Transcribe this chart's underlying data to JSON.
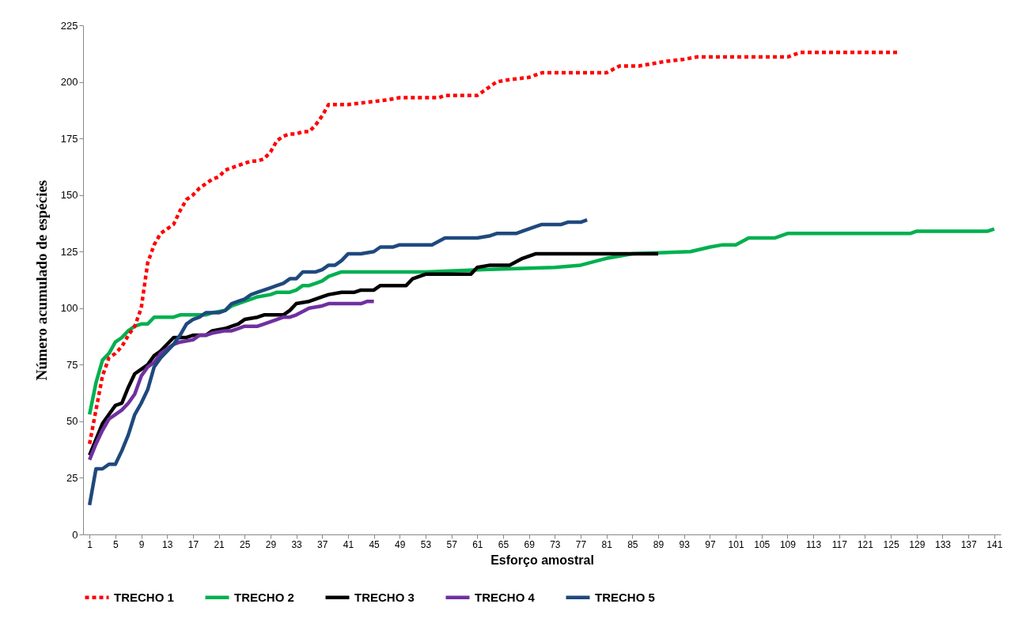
{
  "chart_data": {
    "type": "line",
    "xlabel": "Esforço amostral",
    "ylabel": "Número acumulado de espécies",
    "xlim": [
      0,
      142
    ],
    "ylim": [
      0,
      225
    ],
    "xticks": [
      1,
      5,
      9,
      13,
      17,
      21,
      25,
      29,
      33,
      37,
      41,
      45,
      49,
      53,
      57,
      61,
      65,
      69,
      73,
      77,
      81,
      85,
      89,
      93,
      97,
      101,
      105,
      109,
      113,
      117,
      121,
      125,
      129,
      133,
      137,
      141
    ],
    "yticks": [
      0,
      25,
      50,
      75,
      100,
      125,
      150,
      175,
      200,
      225
    ],
    "legend": "bottom",
    "series": [
      {
        "name": "TRECHO 1",
        "color": "#ff0000",
        "line_style": "dotted",
        "x": [
          1,
          2,
          3,
          4,
          5,
          6,
          7,
          8,
          9,
          10,
          11,
          12,
          13,
          14,
          15,
          16,
          17,
          18,
          19,
          20,
          21,
          22,
          23,
          24,
          25,
          26,
          27,
          28,
          29,
          30,
          31,
          32,
          33,
          34,
          35,
          36,
          37,
          38,
          41,
          44,
          47,
          49,
          55,
          56,
          61,
          62,
          64,
          66,
          69,
          71,
          79,
          81,
          83,
          86,
          88,
          90,
          93,
          95,
          109,
          111,
          126
        ],
        "values": [
          40,
          55,
          70,
          78,
          80,
          83,
          88,
          92,
          100,
          120,
          128,
          133,
          135,
          137,
          143,
          148,
          150,
          153,
          155,
          157,
          158,
          161,
          162,
          163,
          164,
          165,
          165,
          166,
          169,
          174,
          176,
          177,
          177,
          178,
          178,
          181,
          185,
          190,
          190,
          191,
          192,
          193,
          193,
          194,
          194,
          196,
          200,
          201,
          202,
          204,
          204,
          204,
          207,
          207,
          208,
          209,
          210,
          211,
          211,
          213,
          213
        ]
      },
      {
        "name": "TRECHO 2",
        "color": "#00b050",
        "line_style": "solid",
        "x": [
          1,
          2,
          3,
          4,
          5,
          6,
          7,
          8,
          9,
          10,
          11,
          14,
          15,
          19,
          20,
          22,
          23,
          25,
          26,
          27,
          29,
          30,
          32,
          33,
          34,
          35,
          36,
          37,
          38,
          40,
          53,
          62,
          73,
          77,
          81,
          85,
          94,
          97,
          99,
          101,
          103,
          107,
          109,
          128,
          129,
          140,
          141
        ],
        "values": [
          53,
          67,
          77,
          80,
          85,
          87,
          90,
          92,
          93,
          93,
          96,
          96,
          97,
          97,
          98,
          99,
          101,
          103,
          104,
          105,
          106,
          107,
          107,
          108,
          110,
          110,
          111,
          112,
          114,
          116,
          116,
          117,
          118,
          119,
          122,
          124,
          125,
          127,
          128,
          128,
          131,
          131,
          133,
          133,
          134,
          134,
          135
        ]
      },
      {
        "name": "TRECHO 3",
        "color": "#000000",
        "line_style": "solid",
        "x": [
          1,
          2,
          3,
          4,
          5,
          6,
          7,
          8,
          9,
          10,
          11,
          12,
          13,
          14,
          16,
          17,
          19,
          20,
          22,
          23,
          24,
          25,
          27,
          28,
          31,
          32,
          33,
          35,
          37,
          38,
          40,
          42,
          43,
          45,
          46,
          50,
          51,
          53,
          60,
          61,
          63,
          66,
          68,
          70,
          89
        ],
        "values": [
          35,
          42,
          49,
          53,
          57,
          58,
          65,
          71,
          73,
          75,
          79,
          81,
          84,
          87,
          87,
          88,
          88,
          90,
          91,
          92,
          93,
          95,
          96,
          97,
          97,
          99,
          102,
          103,
          105,
          106,
          107,
          107,
          108,
          108,
          110,
          110,
          113,
          115,
          115,
          118,
          119,
          119,
          122,
          124,
          124
        ]
      },
      {
        "name": "TRECHO 4",
        "color": "#7030a0",
        "line_style": "solid",
        "x": [
          1,
          2,
          3,
          4,
          5,
          6,
          7,
          8,
          9,
          10,
          11,
          12,
          13,
          14,
          15,
          17,
          18,
          19,
          20,
          22,
          23,
          24,
          25,
          27,
          28,
          30,
          31,
          32,
          33,
          35,
          37,
          38,
          43,
          44,
          45
        ],
        "values": [
          33,
          40,
          46,
          51,
          53,
          55,
          58,
          62,
          70,
          74,
          76,
          80,
          82,
          84,
          85,
          86,
          88,
          88,
          89,
          90,
          90,
          91,
          92,
          92,
          93,
          95,
          96,
          96,
          97,
          100,
          101,
          102,
          102,
          103,
          103
        ]
      },
      {
        "name": "TRECHO 5",
        "color": "#1f497d",
        "line_style": "solid",
        "x": [
          1,
          2,
          3,
          4,
          5,
          6,
          7,
          8,
          9,
          10,
          11,
          12,
          13,
          14,
          15,
          16,
          17,
          18,
          19,
          21,
          22,
          23,
          24,
          25,
          26,
          27,
          29,
          30,
          31,
          32,
          33,
          34,
          36,
          37,
          38,
          39,
          40,
          41,
          43,
          45,
          46,
          48,
          49,
          54,
          56,
          61,
          63,
          64,
          67,
          68,
          70,
          71,
          74,
          75,
          77,
          78
        ],
        "values": [
          13,
          29,
          29,
          31,
          31,
          37,
          44,
          53,
          58,
          64,
          74,
          78,
          81,
          84,
          88,
          93,
          95,
          96,
          98,
          98,
          99,
          102,
          103,
          104,
          106,
          107,
          109,
          110,
          111,
          113,
          113,
          116,
          116,
          117,
          119,
          119,
          121,
          124,
          124,
          125,
          127,
          127,
          128,
          128,
          131,
          131,
          132,
          133,
          133,
          134,
          136,
          137,
          137,
          138,
          138,
          139
        ]
      }
    ]
  }
}
